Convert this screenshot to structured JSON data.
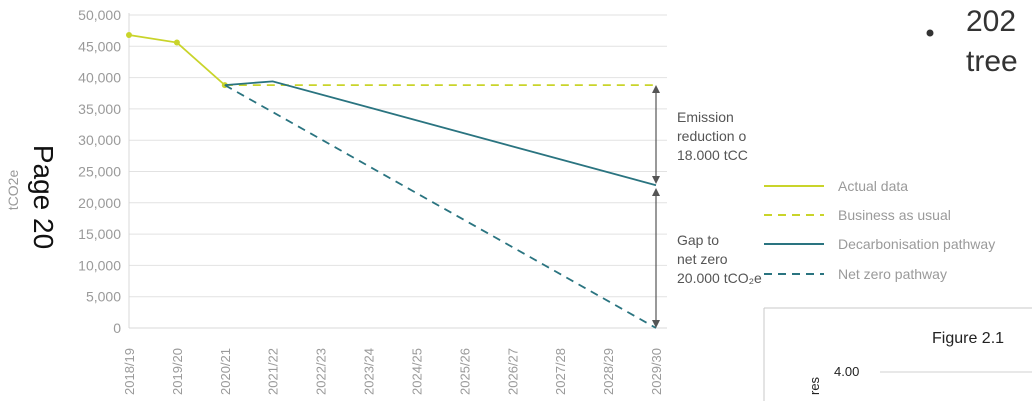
{
  "chart_data": {
    "type": "line",
    "ylabel": "tCO2e",
    "ylim": [
      0,
      50000
    ],
    "yticks": [
      "50,000",
      "45,000",
      "40,000",
      "35,000",
      "30,000",
      "25,000",
      "20,000",
      "15,000",
      "10,000",
      "5,000",
      "0"
    ],
    "categories": [
      "2018/19",
      "2019/20",
      "2020/21",
      "2021/22",
      "2022/23",
      "2023/24",
      "2024/25",
      "2025/26",
      "2026/27",
      "2027/28",
      "2028/29",
      "2029/30"
    ],
    "grid": true,
    "legend_placement": "right",
    "series": [
      {
        "name": "Actual data",
        "color": "#c9d42a",
        "dash": false,
        "points": [
          [
            "2018/19",
            46800
          ],
          [
            "2019/20",
            45600
          ],
          [
            "2020/21",
            38800
          ]
        ]
      },
      {
        "name": "Business as usual",
        "color": "#c9d42a",
        "dash": true,
        "points": [
          [
            "2020/21",
            38800
          ],
          [
            "2029/30",
            38800
          ]
        ]
      },
      {
        "name": "Decarbonisation pathway",
        "color": "#2a7480",
        "dash": false,
        "points": [
          [
            "2020/21",
            38800
          ],
          [
            "2021/22",
            39400
          ],
          [
            "2029/30",
            22800
          ]
        ]
      },
      {
        "name": "Net zero pathway",
        "color": "#2a7480",
        "dash": true,
        "points": [
          [
            "2020/21",
            38800
          ],
          [
            "2029/30",
            0
          ]
        ]
      }
    ],
    "annotations": {
      "reduction": [
        "Emission",
        "reduction o",
        "18.000 tCC"
      ],
      "gap": [
        "Gap to",
        "net zero",
        "20.000 tCO₂e"
      ]
    }
  },
  "side_text": {
    "page_label": "Page 20",
    "top_right_line1": "202",
    "top_right_line2": "tree",
    "figure_caption": "Figure 2.1",
    "figure_tick": "4.00",
    "figure_axis_fragment": "res"
  }
}
